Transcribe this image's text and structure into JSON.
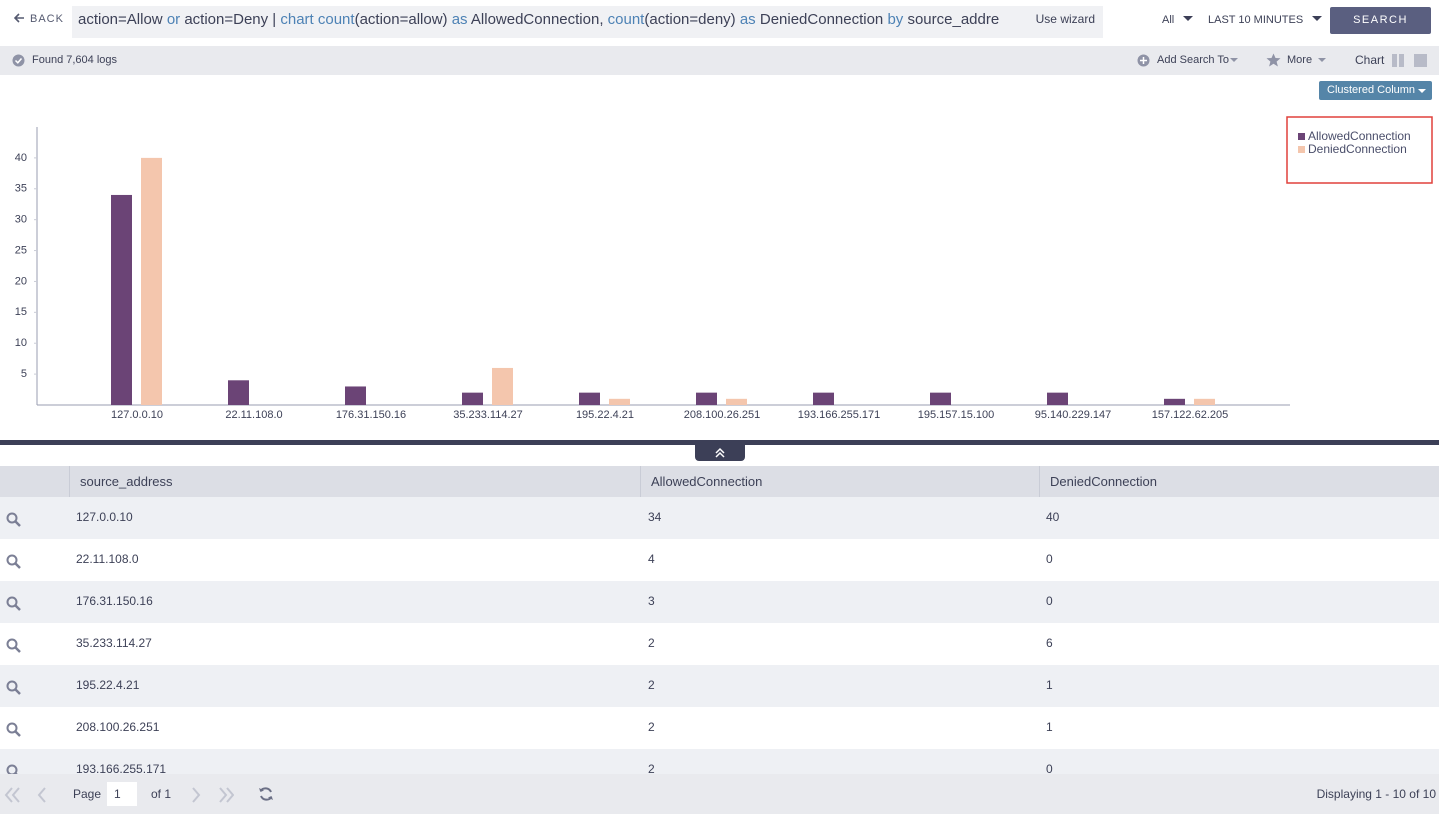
{
  "toolbar": {
    "back": "BACK",
    "query": [
      "action=Allow ",
      "or",
      " action=Deny | ",
      "chart count",
      "(action=allow) ",
      "as",
      " AllowedConnection, ",
      "count",
      "(action=deny) ",
      "as",
      " DeniedConnection ",
      "by",
      " source_addre"
    ],
    "use_wizard": "Use wizard",
    "scope": "All",
    "time_range": "LAST 10 MINUTES",
    "search": "SEARCH"
  },
  "status": {
    "found": "Found 7,604 logs",
    "add_search_to": "Add Search To",
    "more": "More",
    "chart": "Chart",
    "chart_type": "Clustered Column"
  },
  "chart_data": {
    "type": "bar",
    "categories": [
      "127.0.0.10",
      "22.11.108.0",
      "176.31.150.16",
      "35.233.114.27",
      "195.22.4.21",
      "208.100.26.251",
      "193.166.255.171",
      "195.157.15.100",
      "95.140.229.147",
      "157.122.62.205"
    ],
    "series": [
      {
        "name": "AllowedConnection",
        "color": "#6b4476",
        "values": [
          34,
          4,
          3,
          2,
          2,
          2,
          2,
          2,
          2,
          1
        ]
      },
      {
        "name": "DeniedConnection",
        "color": "#f4c6ad",
        "values": [
          40,
          0,
          0,
          6,
          1,
          1,
          0,
          0,
          0,
          1
        ]
      }
    ],
    "ylim": [
      0,
      45
    ],
    "yticks": [
      5,
      10,
      15,
      20,
      25,
      30,
      35,
      40
    ],
    "legend": "top-right"
  },
  "table": {
    "columns": [
      "source_address",
      "AllowedConnection",
      "DeniedConnection"
    ],
    "rows": [
      [
        "127.0.0.10",
        "34",
        "40"
      ],
      [
        "22.11.108.0",
        "4",
        "0"
      ],
      [
        "176.31.150.16",
        "3",
        "0"
      ],
      [
        "35.233.114.27",
        "2",
        "6"
      ],
      [
        "195.22.4.21",
        "2",
        "1"
      ],
      [
        "208.100.26.251",
        "2",
        "1"
      ],
      [
        "193.166.255.171",
        "2",
        "0"
      ]
    ]
  },
  "pager": {
    "page": "Page",
    "page_number": "1",
    "of": "of 1",
    "displaying": "Displaying 1 - 10 of 10"
  }
}
